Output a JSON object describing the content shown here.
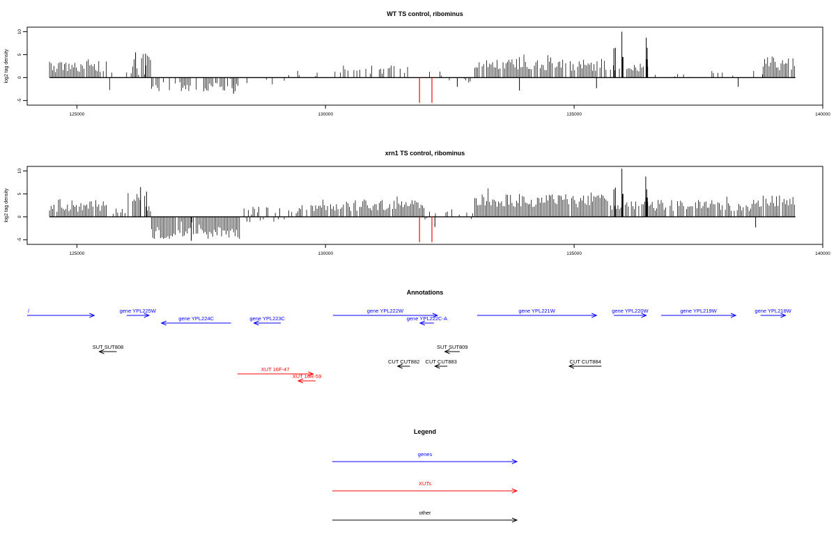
{
  "chart_data": [
    {
      "type": "bar",
      "title": "WT TS control, ribominus",
      "ylabel": "log2 tag density",
      "xlim": [
        124000,
        140000
      ],
      "ylim": [
        -6,
        11
      ],
      "x_ticks": [
        125000,
        130000,
        135000,
        140000
      ],
      "x_tick_labels": [
        "125000",
        "130000",
        "135000",
        "140000"
      ],
      "y_ticks": [
        -5,
        0,
        5,
        10
      ],
      "y_tick_labels": [
        "-5",
        "0",
        "5",
        "10"
      ],
      "baseline_range": [
        124450,
        139450
      ],
      "regions": [
        {
          "start": 124450,
          "end": 125600,
          "mean": 2.5,
          "var": 1.5,
          "density": 0.9
        },
        {
          "start": 125600,
          "end": 125700,
          "mean": -2.5,
          "var": 0.3,
          "density": 0.3
        },
        {
          "start": 125700,
          "end": 126000,
          "mean": 0.8,
          "var": 0.6,
          "density": 0.15
        },
        {
          "start": 126000,
          "end": 126500,
          "mean": 2.5,
          "var": 2.0,
          "density": 0.8
        },
        {
          "start": 126500,
          "end": 128300,
          "mean": -2.0,
          "var": 1.0,
          "density": 0.65
        },
        {
          "start": 128300,
          "end": 129200,
          "mean": -1.0,
          "var": 1.2,
          "density": 0.2
        },
        {
          "start": 129200,
          "end": 130300,
          "mean": 0.8,
          "var": 0.7,
          "density": 0.2
        },
        {
          "start": 130300,
          "end": 131700,
          "mean": 1.8,
          "var": 1.0,
          "density": 0.35
        },
        {
          "start": 131700,
          "end": 132400,
          "mean": 1.0,
          "var": 0.8,
          "density": 0.2
        },
        {
          "start": 132400,
          "end": 133000,
          "mean": -0.6,
          "var": 0.6,
          "density": 0.15
        },
        {
          "start": 133000,
          "end": 135700,
          "mean": 2.8,
          "var": 1.3,
          "density": 0.9
        },
        {
          "start": 135700,
          "end": 136600,
          "mean": 2.0,
          "var": 0.8,
          "density": 0.45
        },
        {
          "start": 136600,
          "end": 138800,
          "mean": 0.8,
          "var": 0.7,
          "density": 0.2
        },
        {
          "start": 138800,
          "end": 139450,
          "mean": 3.0,
          "var": 1.6,
          "density": 0.9
        }
      ],
      "spikes": [
        {
          "x": 126180,
          "y": 5.5
        },
        {
          "x": 126380,
          "y": 5.2
        },
        {
          "x": 135450,
          "y": -2.3
        },
        {
          "x": 135800,
          "y": 6.4
        },
        {
          "x": 135830,
          "y": 6.5
        },
        {
          "x": 135960,
          "y": 10.0
        },
        {
          "x": 136450,
          "y": 8.7
        },
        {
          "x": 136470,
          "y": 6.5
        },
        {
          "x": 128150,
          "y": -3.5
        },
        {
          "x": 133900,
          "y": -2.8
        },
        {
          "x": 138300,
          "y": -2.0
        },
        {
          "x": 132650,
          "y": -2.0
        }
      ],
      "blocks": [
        {
          "x0": 135960,
          "x1": 135990,
          "y": 4.5
        },
        {
          "x0": 136440,
          "x1": 136480,
          "y": 4.0
        }
      ],
      "red_marks": [
        {
          "x": 131890,
          "y": -5.5
        },
        {
          "x": 132140,
          "y": -5.5
        }
      ]
    },
    {
      "type": "bar",
      "title": "xrn1 TS control, ribominus",
      "ylabel": "log2 tag density",
      "xlim": [
        124000,
        140000
      ],
      "ylim": [
        -6,
        11
      ],
      "x_ticks": [
        125000,
        130000,
        135000,
        140000
      ],
      "x_tick_labels": [
        "125000",
        "130000",
        "135000",
        "140000"
      ],
      "y_ticks": [
        -5,
        0,
        5,
        10
      ],
      "y_tick_labels": [
        "-5",
        "0",
        "5",
        "10"
      ],
      "baseline_range": [
        124450,
        139450
      ],
      "regions": [
        {
          "start": 124450,
          "end": 125600,
          "mean": 2.5,
          "var": 1.4,
          "density": 0.9
        },
        {
          "start": 125600,
          "end": 125700,
          "mean": -2.0,
          "var": 0.4,
          "density": 0.3
        },
        {
          "start": 125700,
          "end": 126000,
          "mean": 1.2,
          "var": 0.7,
          "density": 0.2
        },
        {
          "start": 126000,
          "end": 126500,
          "mean": 3.2,
          "var": 2.0,
          "density": 0.8
        },
        {
          "start": 126500,
          "end": 128300,
          "mean": -3.5,
          "var": 1.3,
          "density": 0.95
        },
        {
          "start": 128300,
          "end": 129200,
          "mean": 0.5,
          "var": 1.8,
          "density": 0.7
        },
        {
          "start": 129200,
          "end": 130300,
          "mean": 1.8,
          "var": 1.0,
          "density": 0.7
        },
        {
          "start": 130300,
          "end": 132000,
          "mean": 2.5,
          "var": 1.2,
          "density": 0.95
        },
        {
          "start": 132000,
          "end": 133000,
          "mean": 0.5,
          "var": 1.2,
          "density": 0.35
        },
        {
          "start": 133000,
          "end": 135700,
          "mean": 3.5,
          "var": 1.5,
          "density": 0.95
        },
        {
          "start": 135700,
          "end": 136600,
          "mean": 2.5,
          "var": 1.0,
          "density": 0.7
        },
        {
          "start": 136600,
          "end": 138800,
          "mean": 2.5,
          "var": 1.2,
          "density": 0.9
        },
        {
          "start": 138800,
          "end": 139450,
          "mean": 3.5,
          "var": 1.5,
          "density": 0.9
        }
      ],
      "spikes": [
        {
          "x": 126280,
          "y": 6.5
        },
        {
          "x": 126400,
          "y": 5.5
        },
        {
          "x": 135800,
          "y": 6.0
        },
        {
          "x": 135830,
          "y": 6.4
        },
        {
          "x": 135960,
          "y": 10.5
        },
        {
          "x": 136440,
          "y": 8.8
        },
        {
          "x": 136460,
          "y": 6.0
        },
        {
          "x": 138650,
          "y": -2.3
        },
        {
          "x": 132200,
          "y": -2.2
        },
        {
          "x": 127300,
          "y": -5.2
        }
      ],
      "blocks": [
        {
          "x0": 135960,
          "x1": 135990,
          "y": 5.0
        },
        {
          "x0": 136440,
          "x1": 136480,
          "y": 4.2
        }
      ],
      "red_marks": [
        {
          "x": 131890,
          "y": -5.5
        },
        {
          "x": 132140,
          "y": -5.5
        }
      ]
    }
  ],
  "annotations": {
    "title": "Annotations",
    "xlim": [
      124000,
      140000
    ],
    "features": [
      {
        "label": "/",
        "x0": 124000,
        "x1": 125350,
        "strand": "+",
        "row": 0,
        "color": "#0000ff"
      },
      {
        "label": "gene YPL225W",
        "x0": 126000,
        "x1": 126450,
        "strand": "+",
        "row": 0,
        "color": "#0000ff"
      },
      {
        "label": "gene YPL224C",
        "x0": 126700,
        "x1": 128100,
        "strand": "-",
        "row": 1,
        "color": "#0000ff"
      },
      {
        "label": "gene YPL223C",
        "x0": 128560,
        "x1": 129100,
        "strand": "-",
        "row": 1,
        "color": "#0000ff"
      },
      {
        "label": "gene YPL222W",
        "x0": 130150,
        "x1": 132250,
        "strand": "+",
        "row": 0,
        "color": "#0000ff"
      },
      {
        "label": "gene YPL222C-A",
        "x0": 131900,
        "x1": 132180,
        "strand": "-",
        "row": 1,
        "color": "#0000ff"
      },
      {
        "label": "gene YPL221W",
        "x0": 133050,
        "x1": 135450,
        "strand": "+",
        "row": 0,
        "color": "#0000ff"
      },
      {
        "label": "gene YPL220W",
        "x0": 135800,
        "x1": 136450,
        "strand": "+",
        "row": 0,
        "color": "#0000ff"
      },
      {
        "label": "gene YPL219W",
        "x0": 136750,
        "x1": 138250,
        "strand": "+",
        "row": 0,
        "color": "#0000ff"
      },
      {
        "label": "gene YPL218W",
        "x0": 138750,
        "x1": 139250,
        "strand": "+",
        "row": 0,
        "color": "#0000ff"
      },
      {
        "label": "SUT SUT808",
        "x0": 125450,
        "x1": 125800,
        "strand": "-",
        "row": 3,
        "color": "#000000"
      },
      {
        "label": "SUT SUT809",
        "x0": 132400,
        "x1": 132700,
        "strand": "-",
        "row": 3,
        "color": "#000000"
      },
      {
        "label": "CUT CUT882",
        "x0": 131450,
        "x1": 131700,
        "strand": "-",
        "row": 4,
        "color": "#000000"
      },
      {
        "label": "CUT CUT883",
        "x0": 132200,
        "x1": 132450,
        "strand": "-",
        "row": 4,
        "color": "#000000"
      },
      {
        "label": "CUT CUT884",
        "x0": 134900,
        "x1": 135550,
        "strand": "-",
        "row": 4,
        "color": "#000000"
      },
      {
        "label": "XUT 16F-47",
        "x0": 128230,
        "x1": 129750,
        "strand": "+",
        "row": 5,
        "color": "#ff0000"
      },
      {
        "label": "XUT 16R-59",
        "x0": 129450,
        "x1": 129800,
        "strand": "-",
        "row": 6,
        "color": "#ff0000"
      }
    ]
  },
  "legend": {
    "title": "Legend",
    "items": [
      {
        "label": "genes",
        "color": "#0000ff"
      },
      {
        "label": "XUTs",
        "color": "#ff0000"
      },
      {
        "label": "other",
        "color": "#000000"
      }
    ]
  }
}
